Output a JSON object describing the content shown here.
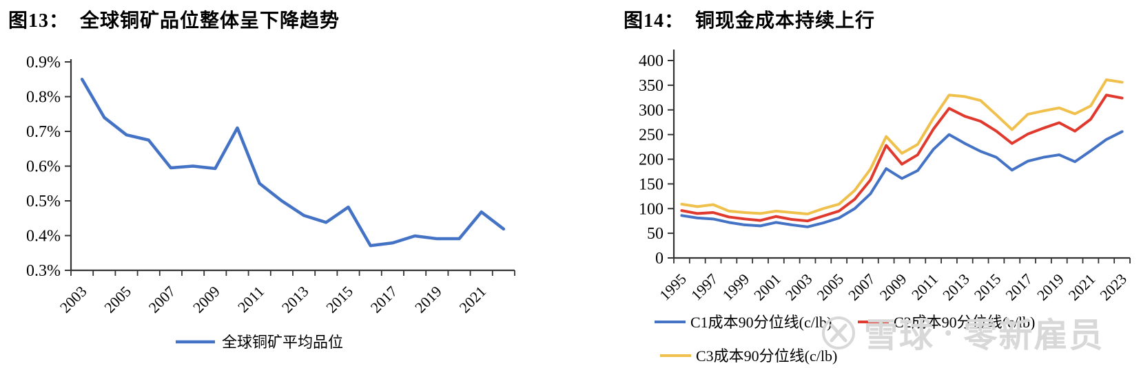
{
  "watermark": {
    "brand": "雪球",
    "separator": "·",
    "user": "零新雇员",
    "color": "#d8d8d8",
    "icon": "xueqiu-snowball-logo"
  },
  "chart_data": [
    {
      "id": "fig13",
      "type": "line",
      "figure_label": "图13：",
      "title": "全球铜矿品位整体呈下降趋势",
      "xlabel": "",
      "ylabel": "",
      "grid": false,
      "legend_position": "bottom-center",
      "x": [
        2003,
        2004,
        2005,
        2006,
        2007,
        2008,
        2009,
        2010,
        2011,
        2012,
        2013,
        2014,
        2015,
        2016,
        2017,
        2018,
        2019,
        2020,
        2021,
        2022
      ],
      "x_tick_labels": [
        "2003",
        "2005",
        "2007",
        "2009",
        "2011",
        "2013",
        "2015",
        "2017",
        "2019",
        "2021"
      ],
      "x_tick_step": 2,
      "ylim": [
        0.3,
        0.9
      ],
      "y_ticks": [
        {
          "v": 0.9,
          "label": "0.9%"
        },
        {
          "v": 0.8,
          "label": "0.8%"
        },
        {
          "v": 0.7,
          "label": "0.7%"
        },
        {
          "v": 0.6,
          "label": "0.6%"
        },
        {
          "v": 0.5,
          "label": "0.5%"
        },
        {
          "v": 0.4,
          "label": "0.4%"
        },
        {
          "v": 0.3,
          "label": "0.3%"
        }
      ],
      "series": [
        {
          "name": "全球铜矿平均品位",
          "color": "#4472C4",
          "values": [
            0.85,
            0.74,
            0.69,
            0.675,
            0.595,
            0.6,
            0.593,
            0.71,
            0.55,
            0.5,
            0.458,
            0.438,
            0.482,
            0.371,
            0.379,
            0.399,
            0.391,
            0.391,
            0.468,
            0.419
          ]
        }
      ]
    },
    {
      "id": "fig14",
      "type": "line",
      "figure_label": "图14：",
      "title": "铜现金成本持续上行",
      "xlabel": "",
      "ylabel": "",
      "grid": false,
      "legend_position": "bottom",
      "x": [
        1995,
        1996,
        1997,
        1998,
        1999,
        2000,
        2001,
        2002,
        2003,
        2004,
        2005,
        2006,
        2007,
        2008,
        2009,
        2010,
        2011,
        2012,
        2013,
        2014,
        2015,
        2016,
        2017,
        2018,
        2019,
        2020,
        2021,
        2022,
        2023
      ],
      "x_tick_labels": [
        "1995",
        "1997",
        "1999",
        "2001",
        "2003",
        "2005",
        "2007",
        "2009",
        "2011",
        "2013",
        "2015",
        "2017",
        "2019",
        "2021",
        "2023"
      ],
      "x_tick_step": 2,
      "ylim": [
        0,
        400
      ],
      "y_ticks": [
        {
          "v": 400,
          "label": "400"
        },
        {
          "v": 350,
          "label": "350"
        },
        {
          "v": 300,
          "label": "300"
        },
        {
          "v": 250,
          "label": "250"
        },
        {
          "v": 200,
          "label": "200"
        },
        {
          "v": 150,
          "label": "150"
        },
        {
          "v": 100,
          "label": "100"
        },
        {
          "v": 50,
          "label": "50"
        },
        {
          "v": 0,
          "label": "0"
        }
      ],
      "series": [
        {
          "name": "C1成本90分位线(c/lb)",
          "color": "#4472C4",
          "values": [
            86,
            81,
            79,
            72,
            67,
            65,
            72,
            67,
            63,
            71,
            81,
            100,
            130,
            181,
            161,
            177,
            220,
            250,
            232,
            216,
            204,
            178,
            196,
            204,
            209,
            195,
            217,
            240,
            256
          ]
        },
        {
          "name": "C2成本90分位线(c/lb)",
          "color": "#E0392E",
          "values": [
            96,
            90,
            92,
            83,
            79,
            76,
            84,
            78,
            75,
            85,
            95,
            119,
            158,
            228,
            190,
            209,
            261,
            303,
            287,
            277,
            257,
            232,
            251,
            263,
            274,
            257,
            281,
            330,
            324
          ]
        },
        {
          "name": "C3成本90分位线(c/lb)",
          "color": "#EFC04B",
          "values": [
            109,
            104,
            108,
            95,
            92,
            90,
            95,
            92,
            89,
            100,
            109,
            137,
            180,
            246,
            212,
            230,
            283,
            330,
            327,
            319,
            290,
            260,
            291,
            298,
            304,
            292,
            308,
            361,
            356
          ]
        }
      ]
    }
  ]
}
